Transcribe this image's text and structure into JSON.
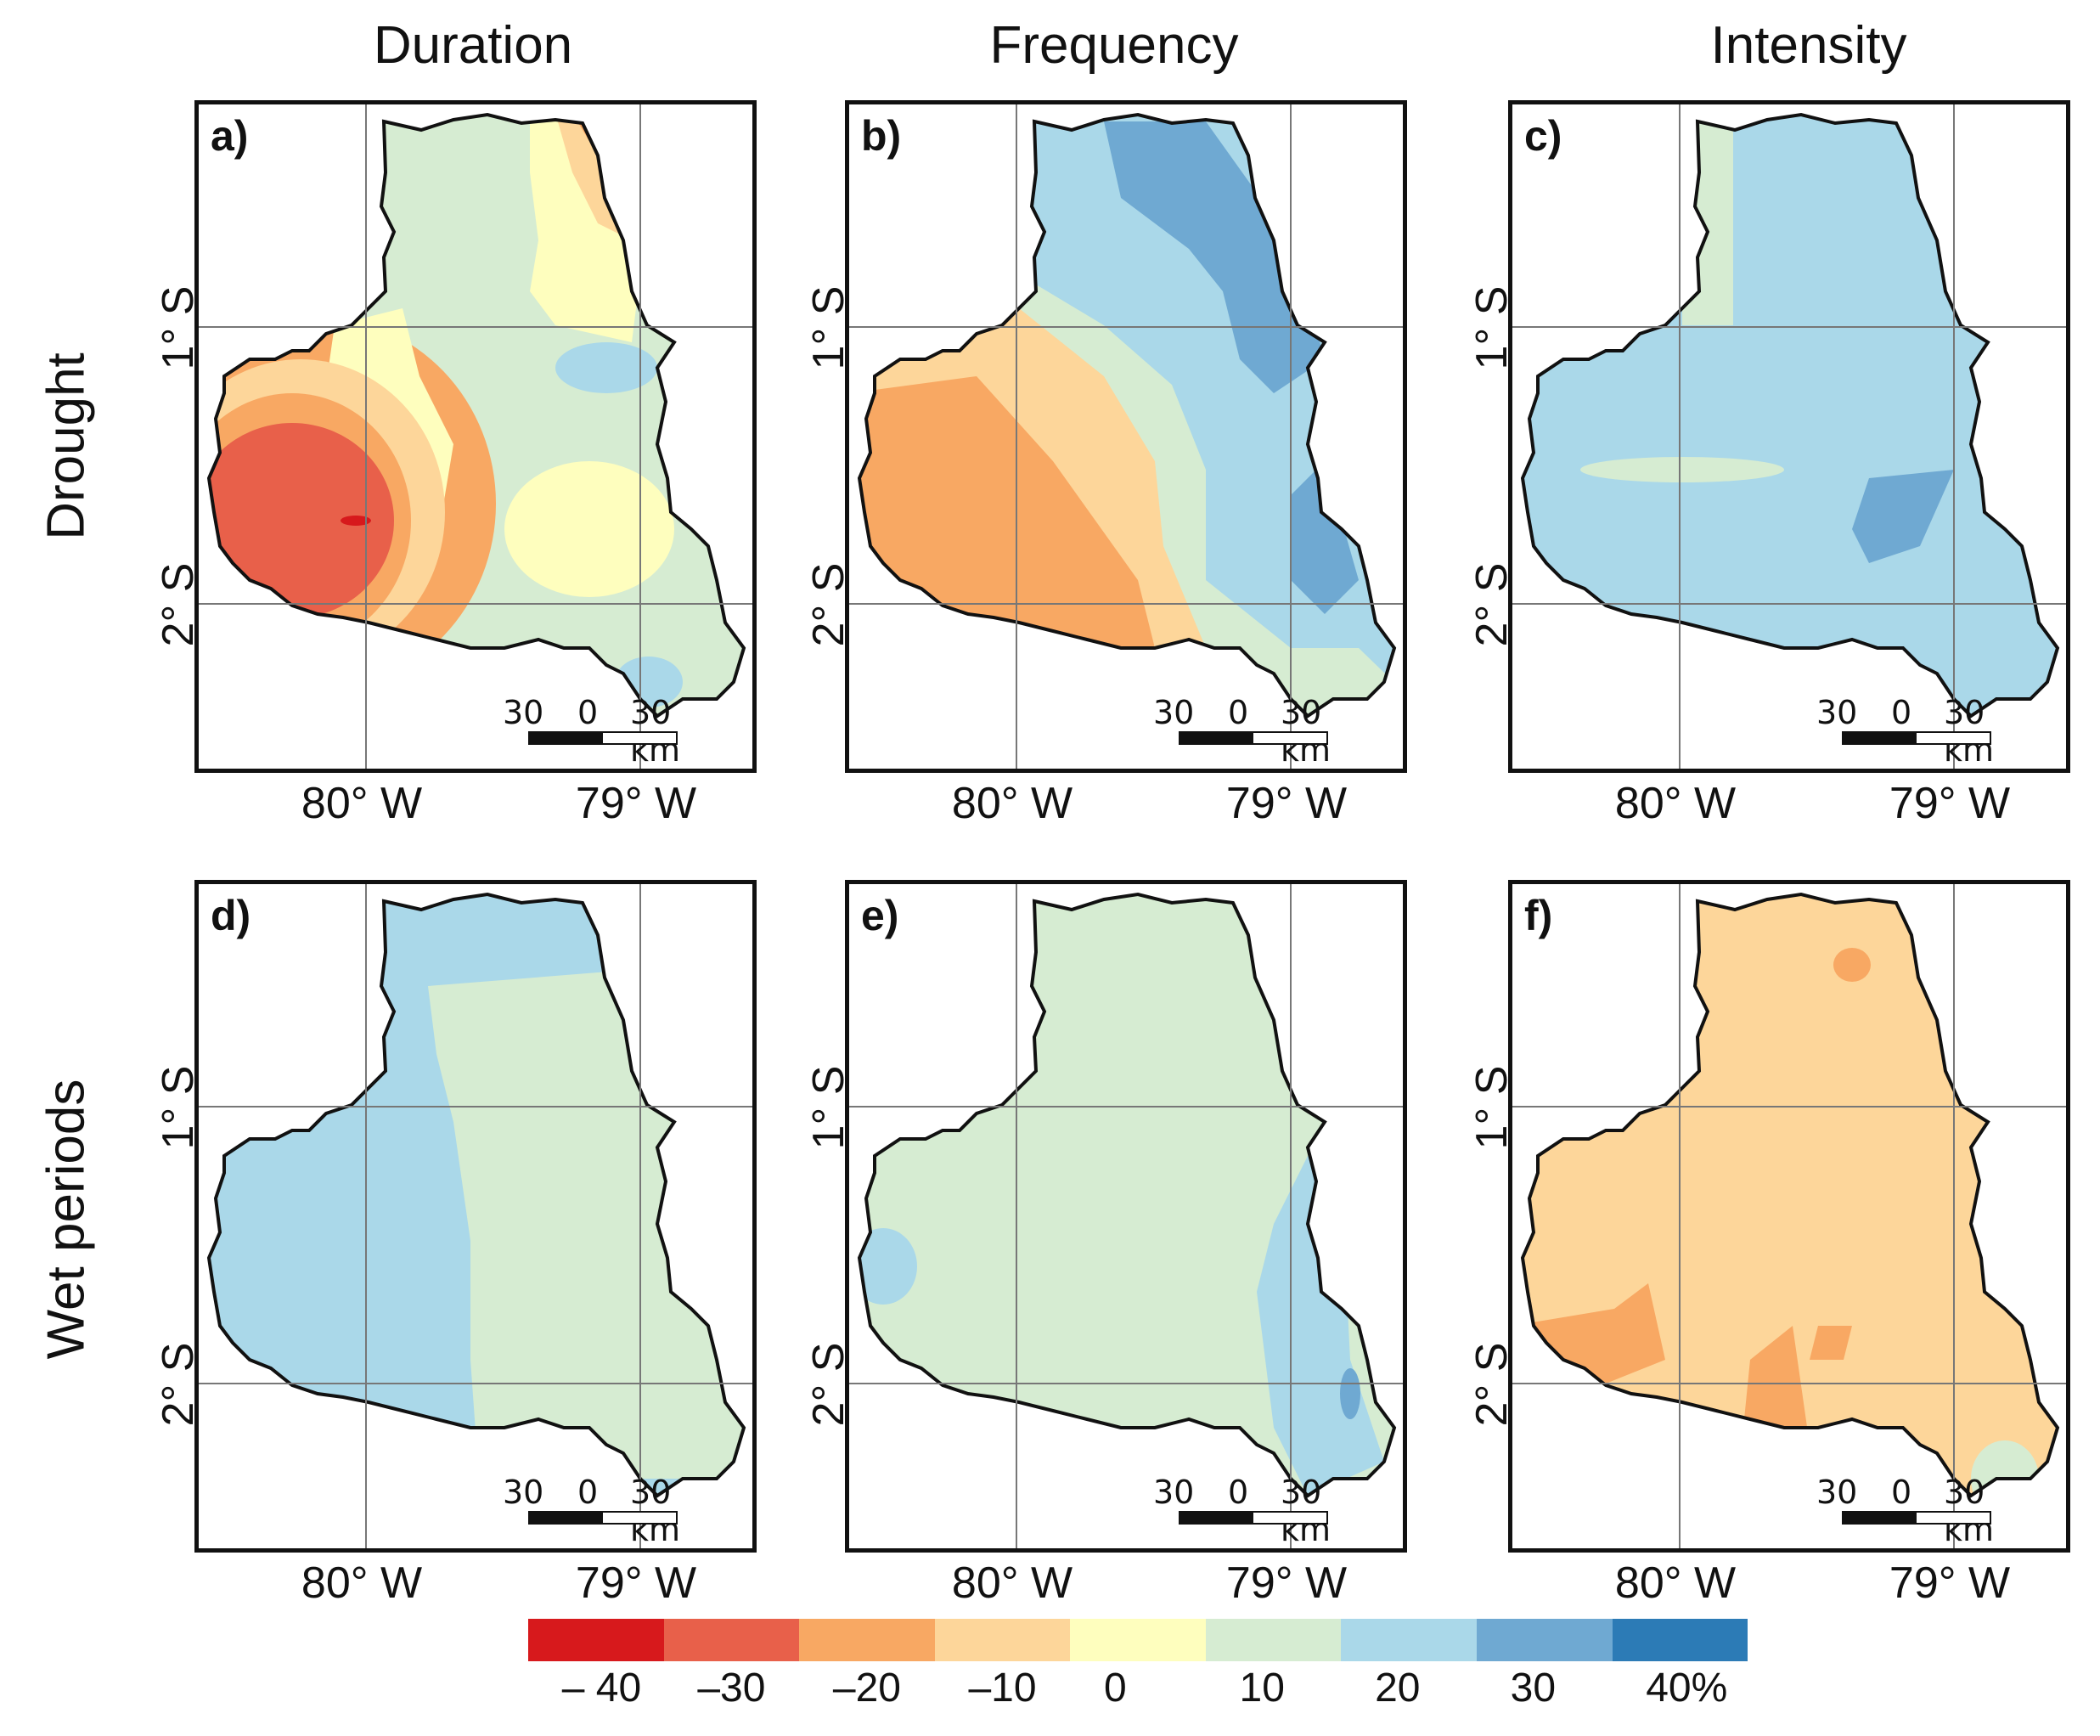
{
  "columns": [
    "Duration",
    "Frequency",
    "Intensity"
  ],
  "rows": [
    "Drought",
    "Wet periods"
  ],
  "panels": [
    {
      "label": "a)",
      "scale": {
        "left": "30",
        "mid": "0",
        "right": "30 km"
      }
    },
    {
      "label": "b)",
      "scale": {
        "left": "30",
        "mid": "0",
        "right": "30 km"
      }
    },
    {
      "label": "c)",
      "scale": {
        "left": "30",
        "mid": "0",
        "right": "30 km"
      }
    },
    {
      "label": "d)",
      "scale": {
        "left": "30",
        "mid": "0",
        "right": "30 km"
      }
    },
    {
      "label": "e)",
      "scale": {
        "left": "30",
        "mid": "0",
        "right": "30 km"
      }
    },
    {
      "label": "f)",
      "scale": {
        "left": "30",
        "mid": "0",
        "right": "30 km"
      }
    }
  ],
  "axes": {
    "lat_ticks": [
      "1° S",
      "2° S"
    ],
    "lon_ticks": [
      "80° W",
      "79° W"
    ]
  },
  "legend": {
    "colors": [
      "#d7191c",
      "#e8604a",
      "#f8a863",
      "#fdd69a",
      "#fefebe",
      "#d6ecd2",
      "#aad8e9",
      "#6fa9d2",
      "#2c7bb6"
    ],
    "ticks": [
      "– 40",
      "–30",
      "–20",
      "–10",
      "0",
      "10",
      "20",
      "30",
      "40%"
    ]
  }
}
